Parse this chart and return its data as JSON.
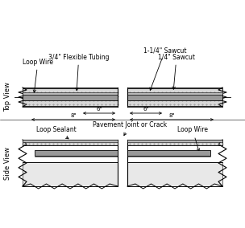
{
  "bg_color": "#ffffff",
  "line_color": "#000000",
  "dark_gray": "#999999",
  "med_gray": "#bbbbbb",
  "dot_gray": "#d8d8d8",
  "light_gray": "#e8e8e8",
  "font_size": 5.5,
  "top_view_label": "Top View",
  "side_view_label": "Side View",
  "dim_6": "6\"",
  "dim_8": "8\"",
  "label_flexible_tubing": "3/4\" Flexible Tubing",
  "label_loop_wire_top": "Loop Wire",
  "label_sawcut_114": "1-1/4\" Sawcut",
  "label_sawcut_14": "1/4\" Sawcut",
  "label_loop_sealant": "Loop Sealant",
  "label_pavement_joint": "Pavement Joint or Crack",
  "label_loop_wire_bot": "Loop Wire"
}
